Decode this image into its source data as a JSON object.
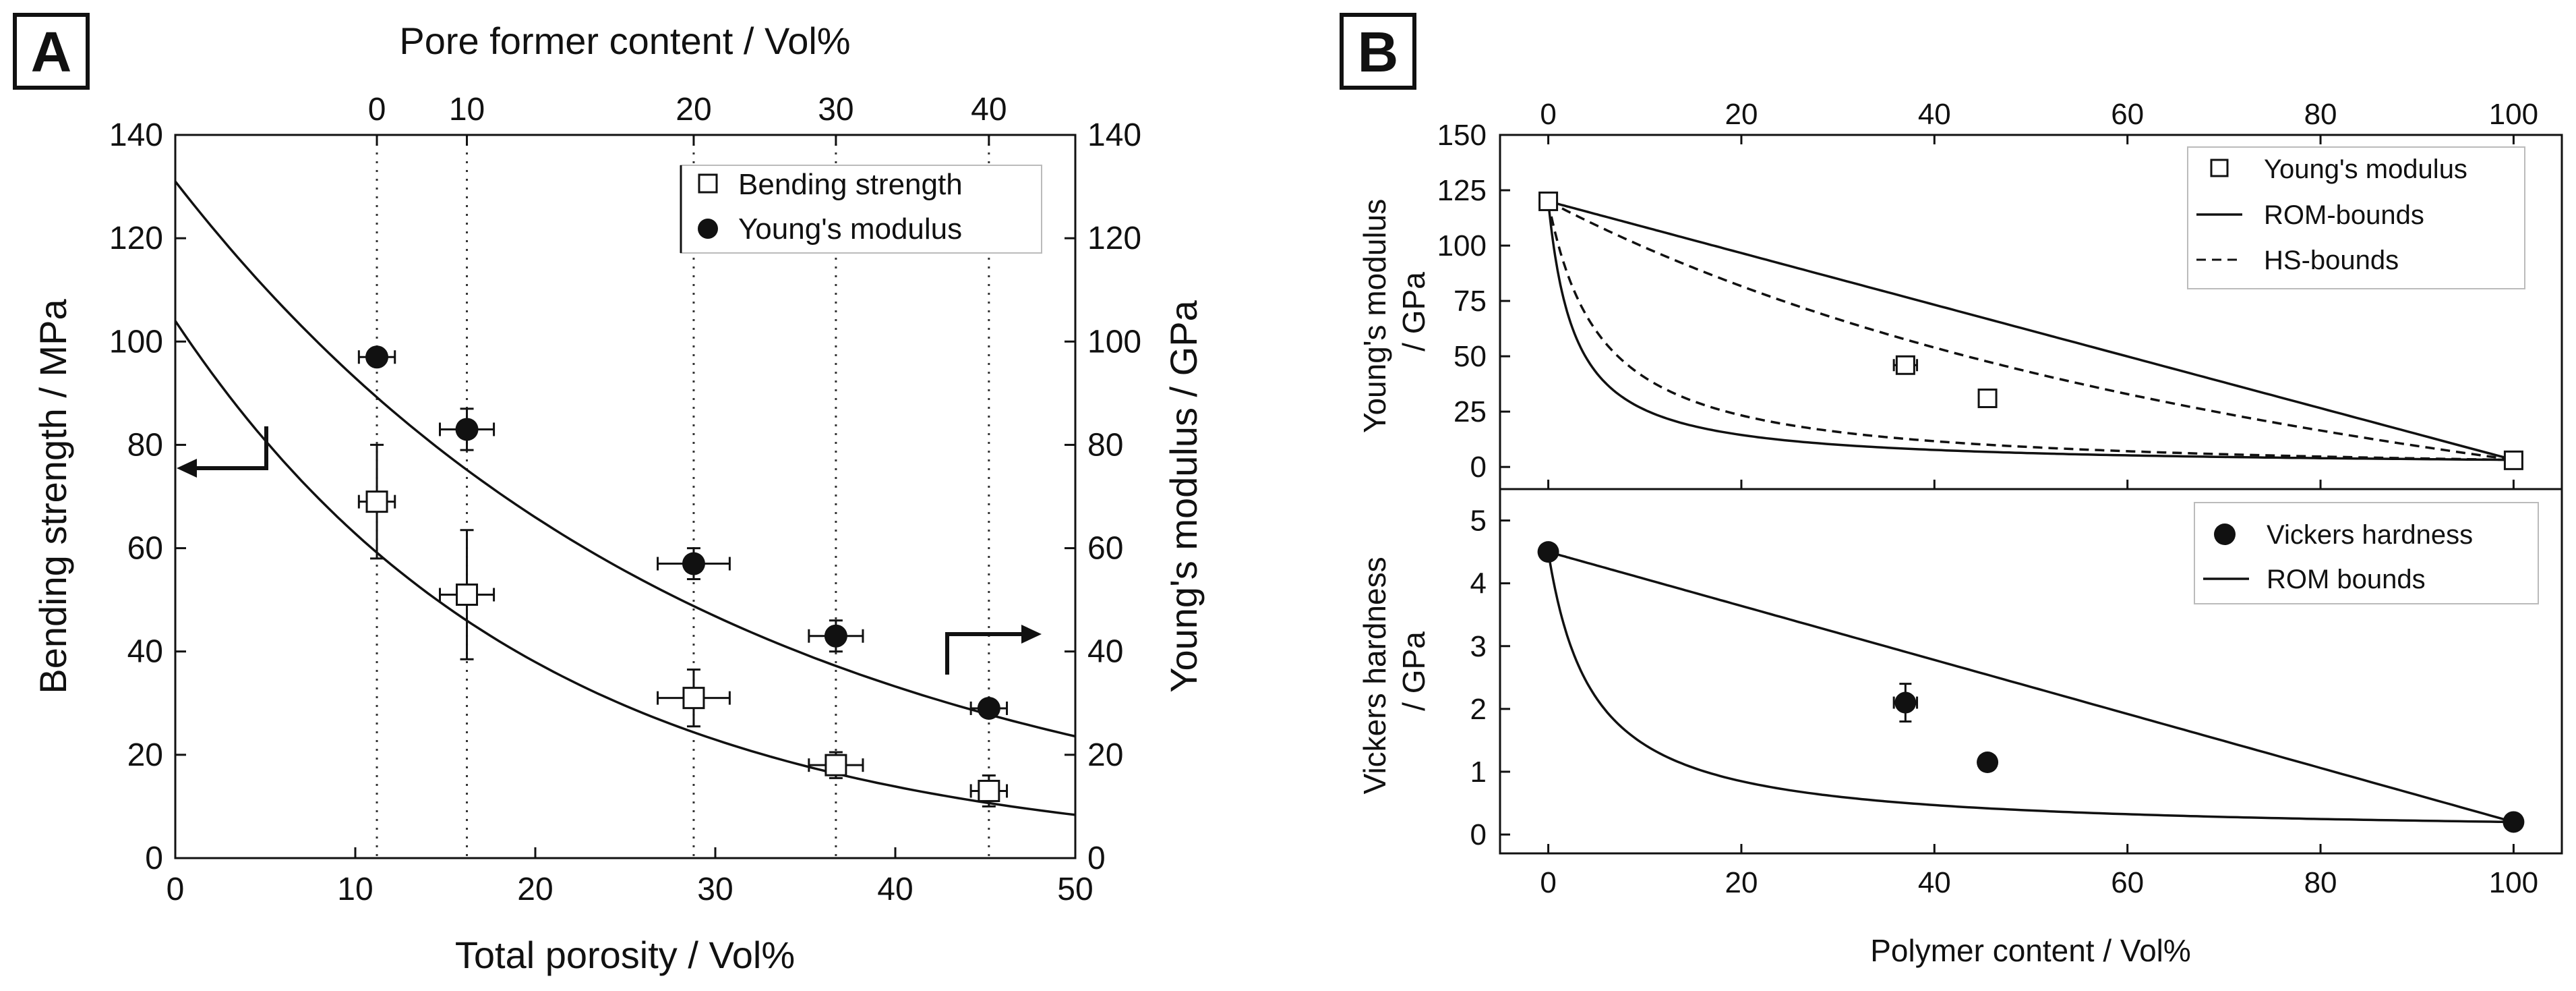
{
  "panels": {
    "a": {
      "label": "A"
    },
    "b": {
      "label": "B"
    }
  },
  "chart_data": [
    {
      "id": "A",
      "type": "scatter",
      "title": "",
      "xlabel": "Total porosity / Vol%",
      "ylabel": "Bending strength / MPa",
      "y2label": "Young's modulus / GPa",
      "x2label": "Pore former content / Vol%",
      "xlim": [
        0,
        50
      ],
      "ylim": [
        0,
        140
      ],
      "y2lim": [
        0,
        140
      ],
      "xticks": [
        0,
        10,
        20,
        30,
        40,
        50
      ],
      "yticks": [
        0,
        20,
        40,
        60,
        80,
        100,
        120,
        140
      ],
      "x2ticks": [
        {
          "x": 11.2,
          "label": "0"
        },
        {
          "x": 16.2,
          "label": "10"
        },
        {
          "x": 28.8,
          "label": "20"
        },
        {
          "x": 36.7,
          "label": "30"
        },
        {
          "x": 45.2,
          "label": "40"
        }
      ],
      "legend": {
        "position": "top-right",
        "entries": [
          {
            "label": "Bending strength",
            "marker": "open-square"
          },
          {
            "label": "Young's modulus",
            "marker": "filled-circle"
          }
        ]
      },
      "series": [
        {
          "name": "Bending strength",
          "axis": "left",
          "marker": "open-square",
          "points": [
            {
              "x": 11.2,
              "y": 69,
              "xerr": 1.0,
              "yerr": 11
            },
            {
              "x": 16.2,
              "y": 51,
              "xerr": 1.5,
              "yerr": 12.5
            },
            {
              "x": 28.8,
              "y": 31,
              "xerr": 2.0,
              "yerr": 5.5
            },
            {
              "x": 36.7,
              "y": 18,
              "xerr": 1.5,
              "yerr": 2.5
            },
            {
              "x": 45.2,
              "y": 13,
              "xerr": 1.0,
              "yerr": 3
            }
          ],
          "fit": {
            "y0": 104,
            "k": 0.0504
          }
        },
        {
          "name": "Young's modulus",
          "axis": "right",
          "marker": "filled-circle",
          "points": [
            {
              "x": 11.2,
              "y": 97,
              "xerr": 1.0,
              "yerr": 1.5
            },
            {
              "x": 16.2,
              "y": 83,
              "xerr": 1.5,
              "yerr": 4
            },
            {
              "x": 28.8,
              "y": 57,
              "xerr": 2.0,
              "yerr": 3
            },
            {
              "x": 36.7,
              "y": 43,
              "xerr": 1.5,
              "yerr": 3
            },
            {
              "x": 45.2,
              "y": 29,
              "xerr": 1.0,
              "yerr": 1.5
            }
          ],
          "fit": {
            "y0": 131,
            "k": 0.0343
          }
        }
      ],
      "annotations": [
        {
          "type": "arrow",
          "direction": "left",
          "points_to": "left-axis"
        },
        {
          "type": "arrow",
          "direction": "right",
          "points_to": "right-axis"
        }
      ]
    },
    {
      "id": "B-top",
      "type": "scatter",
      "title": "",
      "xlabel": "",
      "x2label": "",
      "ylabel": "Young's modulus / GPa",
      "xlim": [
        -5,
        105
      ],
      "ylim": [
        -10,
        150
      ],
      "xticks": [
        0,
        20,
        40,
        60,
        80,
        100
      ],
      "yticks": [
        0,
        25,
        50,
        75,
        100,
        125,
        150
      ],
      "legend": {
        "position": "top-right",
        "entries": [
          {
            "label": "Young's modulus",
            "marker": "open-square"
          },
          {
            "label": "ROM-bounds",
            "line": "solid"
          },
          {
            "label": "HS-bounds",
            "line": "dashed"
          }
        ]
      },
      "bounds": {
        "e_matrix": 120,
        "e_polymer": 3.2
      },
      "series": [
        {
          "name": "Young's modulus",
          "marker": "open-square",
          "points": [
            {
              "x": 0,
              "y": 120,
              "xerr": 0,
              "yerr": 0
            },
            {
              "x": 37,
              "y": 46,
              "xerr": 1.2,
              "yerr": 2
            },
            {
              "x": 45.5,
              "y": 31,
              "xerr": 0,
              "yerr": 0
            },
            {
              "x": 100,
              "y": 3,
              "xerr": 0,
              "yerr": 0
            }
          ]
        }
      ]
    },
    {
      "id": "B-bottom",
      "type": "scatter",
      "title": "",
      "xlabel": "Polymer content / Vol%",
      "ylabel": "Vickers hardness / GPa",
      "xlim": [
        -5,
        105
      ],
      "ylim": [
        -0.3,
        5.5
      ],
      "xticks": [
        0,
        20,
        40,
        60,
        80,
        100
      ],
      "yticks": [
        0,
        1,
        2,
        3,
        4,
        5
      ],
      "legend": {
        "position": "top-right",
        "entries": [
          {
            "label": "Vickers hardness",
            "marker": "filled-circle"
          },
          {
            "label": "ROM bounds",
            "line": "solid"
          }
        ]
      },
      "bounds": {
        "h_matrix": 4.5,
        "h_polymer": 0.2
      },
      "series": [
        {
          "name": "Vickers hardness",
          "marker": "filled-circle",
          "points": [
            {
              "x": 0,
              "y": 4.5,
              "xerr": 0,
              "yerr": 0
            },
            {
              "x": 37,
              "y": 2.1,
              "xerr": 1.2,
              "yerr": 0.3
            },
            {
              "x": 45.5,
              "y": 1.15,
              "xerr": 0.8,
              "yerr": 0.12
            },
            {
              "x": 100,
              "y": 0.2,
              "xerr": 0,
              "yerr": 0
            }
          ]
        }
      ]
    }
  ]
}
